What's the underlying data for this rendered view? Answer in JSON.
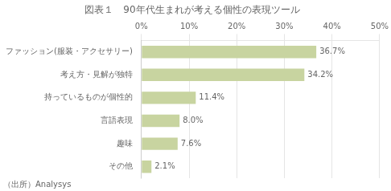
{
  "chart_data": {
    "type": "bar",
    "orientation": "horizontal",
    "title": "図表１　90年代生まれが考える個性の表現ツール",
    "categories": [
      "ファッション(服装・アクセサリー)",
      "考え方・見解が独特",
      "持っているものが個性的",
      "言語表現",
      "趣味",
      "その他"
    ],
    "values": [
      36.7,
      34.2,
      11.4,
      8.0,
      7.6,
      2.1
    ],
    "value_labels": [
      "36.7%",
      "34.2%",
      "11.4%",
      "8.0%",
      "7.6%",
      "2.1%"
    ],
    "data_labels": true,
    "color": "#c8d4a0",
    "xlim": [
      0,
      50
    ],
    "xticks": [
      {
        "value": 0,
        "label": "0%"
      },
      {
        "value": 10,
        "label": "10%"
      },
      {
        "value": 20,
        "label": "20%"
      },
      {
        "value": 30,
        "label": "30%"
      },
      {
        "value": 40,
        "label": "40%"
      },
      {
        "value": 50,
        "label": "50%"
      }
    ],
    "grid": true,
    "annotations": [
      "（出所）Analysys"
    ]
  }
}
